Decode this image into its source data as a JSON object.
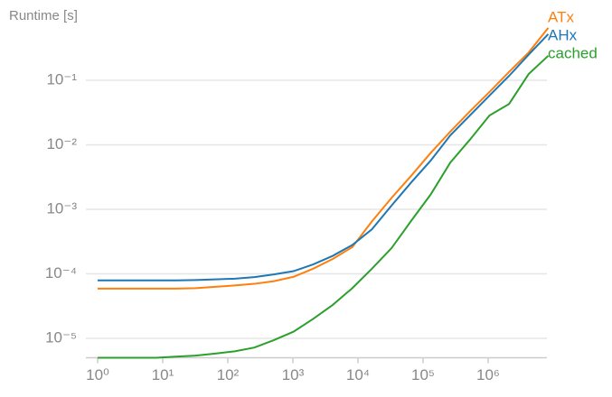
{
  "chart_data": {
    "type": "line",
    "y_label": "Runtime [s]",
    "x": [
      1,
      2,
      4,
      8,
      16,
      32,
      64,
      128,
      256,
      512,
      1024,
      2048,
      4096,
      8192,
      16384,
      32768,
      65536,
      131072,
      262144,
      524288,
      1048576,
      2097152,
      4194304,
      8388608
    ],
    "series": [
      {
        "name": "ATx",
        "color": "#ff7f0e",
        "values": [
          5.9e-05,
          5.9e-05,
          5.9e-05,
          5.9e-05,
          5.9e-05,
          6e-05,
          6.3e-05,
          6.6e-05,
          7e-05,
          7.7e-05,
          9e-05,
          0.00012,
          0.00017,
          0.00026,
          0.00065,
          0.0015,
          0.0033,
          0.0075,
          0.016,
          0.033,
          0.066,
          0.135,
          0.27,
          0.65
        ]
      },
      {
        "name": "AHx",
        "color": "#1f77b4",
        "values": [
          7.9e-05,
          7.9e-05,
          7.9e-05,
          7.9e-05,
          7.9e-05,
          8e-05,
          8.2e-05,
          8.4e-05,
          8.9e-05,
          9.8e-05,
          0.00011,
          0.00014,
          0.00019,
          0.00028,
          0.00049,
          0.00114,
          0.0026,
          0.0057,
          0.014,
          0.0285,
          0.058,
          0.117,
          0.25,
          0.52
        ]
      },
      {
        "name": "cached",
        "color": "#2ca02c",
        "values": [
          5e-06,
          5e-06,
          5e-06,
          5e-06,
          5.2e-06,
          5.4e-06,
          5.8e-06,
          6.3e-06,
          7.2e-06,
          9.4e-06,
          1.27e-05,
          2e-05,
          3.3e-05,
          6e-05,
          0.00012,
          0.00025,
          0.00066,
          0.0017,
          0.0053,
          0.012,
          0.0285,
          0.043,
          0.125,
          0.24
        ]
      }
    ],
    "xscale": "log",
    "yscale": "log",
    "xlim": [
      0.66,
      8000000
    ],
    "ylim": [
      5e-06,
      1
    ],
    "xticks": [
      {
        "value": 1,
        "label": "10⁰"
      },
      {
        "value": 10,
        "label": "10¹"
      },
      {
        "value": 100,
        "label": "10²"
      },
      {
        "value": 1000,
        "label": "10³"
      },
      {
        "value": 10000,
        "label": "10⁴"
      },
      {
        "value": 100000,
        "label": "10⁵"
      },
      {
        "value": 1000000,
        "label": "10⁶"
      }
    ],
    "yticks": [
      {
        "value": 1e-05,
        "label": "10⁻⁵"
      },
      {
        "value": 0.0001,
        "label": "10⁻⁴"
      },
      {
        "value": 0.001,
        "label": "10⁻³"
      },
      {
        "value": 0.01,
        "label": "10⁻²"
      },
      {
        "value": 0.1,
        "label": "10⁻¹"
      }
    ],
    "grid": true
  }
}
